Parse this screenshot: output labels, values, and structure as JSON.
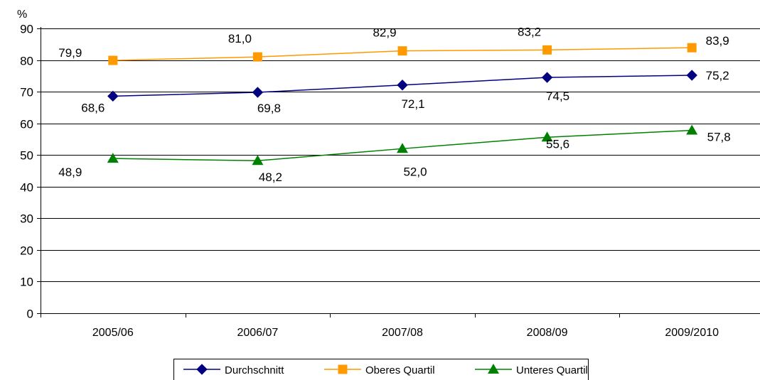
{
  "chart_data": {
    "type": "line",
    "ylabel": "%",
    "ylim": [
      0,
      90
    ],
    "yticks": [
      0,
      10,
      20,
      30,
      40,
      50,
      60,
      70,
      80,
      90
    ],
    "grid": true,
    "legend_position": "bottom",
    "categories": [
      "2005/06",
      "2006/07",
      "2007/08",
      "2008/09",
      "2009/2010"
    ],
    "series": [
      {
        "name": "Durchschnitt",
        "color": "#000080",
        "marker": "diamond",
        "values": [
          68.6,
          69.8,
          72.1,
          74.5,
          75.2
        ],
        "labels": [
          "68,6",
          "69,8",
          "72,1",
          "74,5",
          "75,2"
        ]
      },
      {
        "name": "Oberes Quartil",
        "color": "#FF9900",
        "marker": "square",
        "values": [
          79.9,
          81.0,
          82.9,
          83.2,
          83.9
        ],
        "labels": [
          "79,9",
          "81,0",
          "82,9",
          "83,2",
          "83,9"
        ]
      },
      {
        "name": "Unteres Quartil",
        "color": "#008000",
        "marker": "triangle",
        "values": [
          48.9,
          48.2,
          52.0,
          55.6,
          57.8
        ],
        "labels": [
          "48,9",
          "48,2",
          "52,0",
          "55,6",
          "57,8"
        ]
      }
    ]
  }
}
